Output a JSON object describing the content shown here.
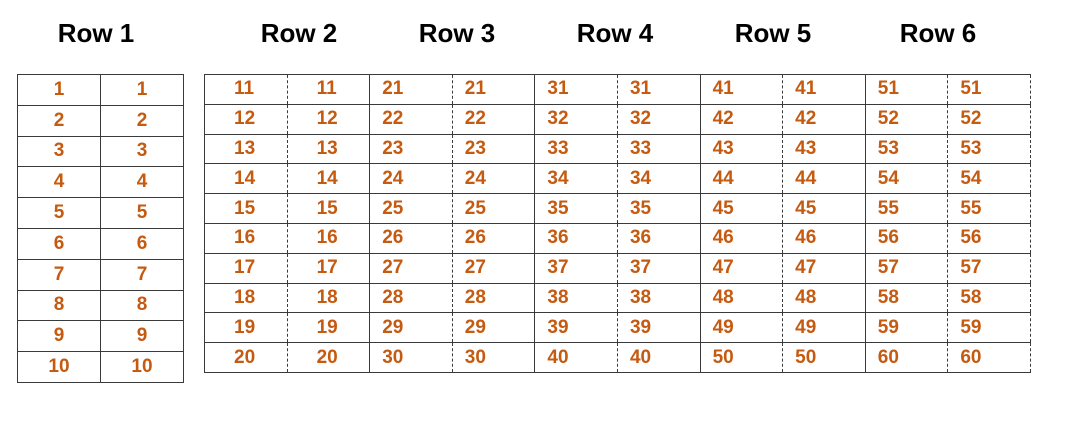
{
  "headers": [
    "Row 1",
    "Row 2",
    "Row 3",
    "Row 4",
    "Row 5",
    "Row 6"
  ],
  "table1": {
    "rows": [
      [
        "1",
        "1"
      ],
      [
        "2",
        "2"
      ],
      [
        "3",
        "3"
      ],
      [
        "4",
        "4"
      ],
      [
        "5",
        "5"
      ],
      [
        "6",
        "6"
      ],
      [
        "7",
        "7"
      ],
      [
        "8",
        "8"
      ],
      [
        "9",
        "9"
      ],
      [
        "10",
        "10"
      ]
    ]
  },
  "table2": {
    "rows": [
      [
        "11",
        "11",
        "21",
        "21",
        "31",
        "31",
        "41",
        "41",
        "51",
        "51"
      ],
      [
        "12",
        "12",
        "22",
        "22",
        "32",
        "32",
        "42",
        "42",
        "52",
        "52"
      ],
      [
        "13",
        "13",
        "23",
        "23",
        "33",
        "33",
        "43",
        "43",
        "53",
        "53"
      ],
      [
        "14",
        "14",
        "24",
        "24",
        "34",
        "34",
        "44",
        "44",
        "54",
        "54"
      ],
      [
        "15",
        "15",
        "25",
        "25",
        "35",
        "35",
        "45",
        "45",
        "55",
        "55"
      ],
      [
        "16",
        "16",
        "26",
        "26",
        "36",
        "36",
        "46",
        "46",
        "56",
        "56"
      ],
      [
        "17",
        "17",
        "27",
        "27",
        "37",
        "37",
        "47",
        "47",
        "57",
        "57"
      ],
      [
        "18",
        "18",
        "28",
        "28",
        "38",
        "38",
        "48",
        "48",
        "58",
        "58"
      ],
      [
        "19",
        "19",
        "29",
        "29",
        "39",
        "39",
        "49",
        "49",
        "59",
        "59"
      ],
      [
        "20",
        "20",
        "30",
        "30",
        "40",
        "40",
        "50",
        "50",
        "60",
        "60"
      ]
    ]
  },
  "colors": {
    "number_text": "#c55a11",
    "header_text": "#000000",
    "grid_line": "#3a3a3a"
  }
}
